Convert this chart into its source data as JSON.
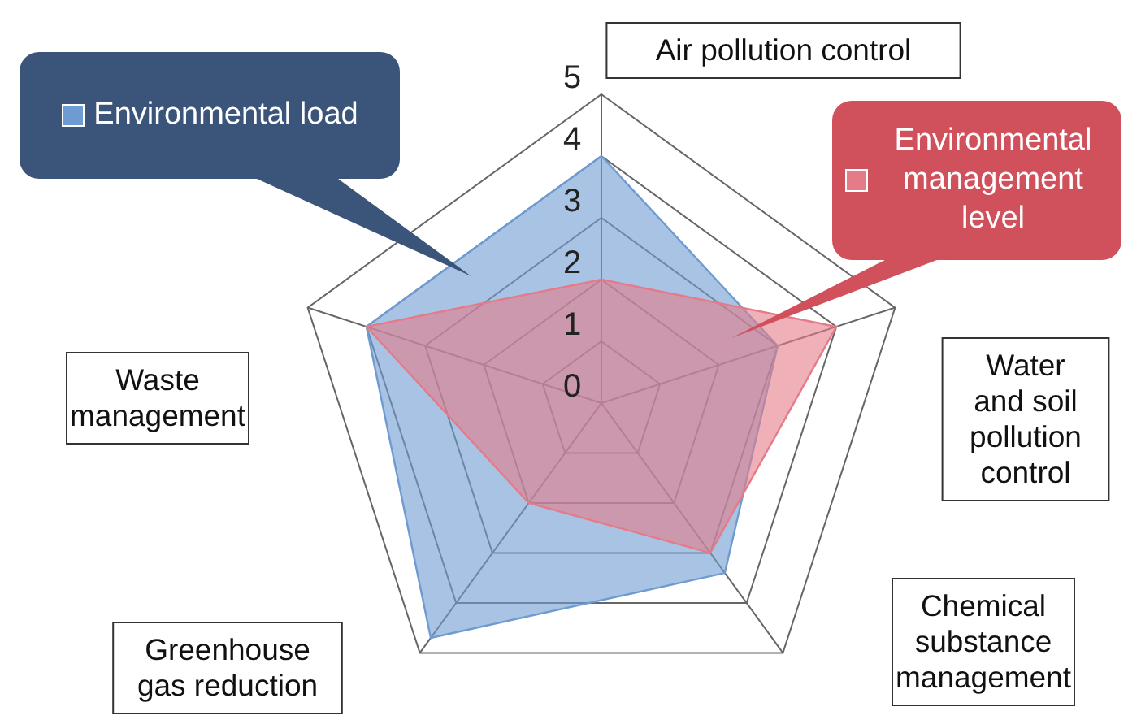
{
  "chart_data": {
    "type": "radar",
    "categories": [
      "Air pollution control",
      "Water\nand soil\npollution\ncontrol",
      "Chemical\nsubstance\nmanagement",
      "Greenhouse\ngas reduction",
      "Waste\nmanagement"
    ],
    "series": [
      {
        "name": "Environmental load",
        "color": "#6e9bd1",
        "values": [
          4,
          3,
          3.4,
          4.7,
          4
        ]
      },
      {
        "name": "Environmental management level",
        "color": "#e57b88",
        "values": [
          2,
          4,
          3,
          2,
          4
        ]
      }
    ],
    "ylim": [
      0,
      5
    ],
    "yticks": [
      0,
      1,
      2,
      3,
      4,
      5
    ],
    "grid": true,
    "legend": "top"
  }
}
